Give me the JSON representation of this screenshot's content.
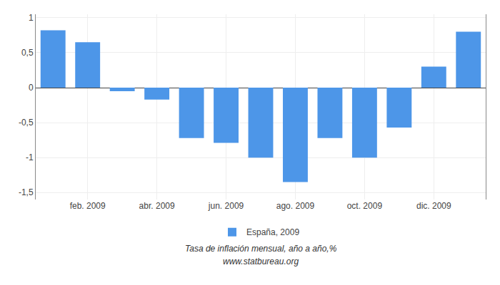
{
  "chart_data": {
    "type": "bar",
    "categories": [
      null,
      "feb. 2009",
      null,
      "abr. 2009",
      null,
      "jun. 2009",
      null,
      "ago. 2009",
      null,
      "oct. 2009",
      null,
      "dic. 2009",
      null
    ],
    "series": [
      {
        "name": "España, 2009",
        "color": "#4d96e8",
        "values": [
          0.82,
          0.65,
          -0.05,
          -0.17,
          -0.72,
          -0.79,
          -1.0,
          -1.35,
          -0.72,
          -1.0,
          -0.57,
          0.3,
          0.8
        ]
      }
    ],
    "ylim": [
      -1.6,
      1.05
    ],
    "yticks": [
      {
        "value": -1.5,
        "label": "-1,5"
      },
      -1.0,
      {
        "value": -0.5,
        "label": "-0,5"
      },
      0.0,
      {
        "value": 0.5,
        "label": "0,5"
      },
      1.0
    ],
    "grid": true,
    "legend": "bottom",
    "annotations": [
      "Tasa de inflación mensual, año a año,%",
      "www.statbureau.org"
    ]
  }
}
